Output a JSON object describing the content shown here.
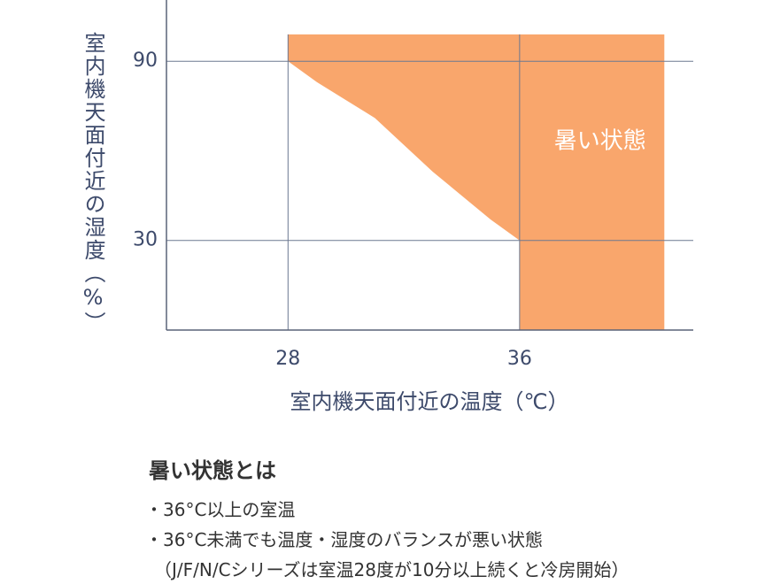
{
  "chart_data": {
    "type": "area",
    "x_label": "室内機天面付近の温度（℃）",
    "y_label": "室内機天面付近の湿度（%）",
    "x": [
      28,
      28,
      29,
      30,
      31,
      32,
      33,
      34,
      35,
      36,
      36,
      41,
      41
    ],
    "series": [
      {
        "name": "暑い状態",
        "color": "#f9a66c",
        "values": [
          99,
          90,
          83,
          77,
          71,
          62,
          53,
          45,
          37,
          30,
          0,
          0,
          99
        ]
      }
    ],
    "xlim": [
      23.8,
      42
    ],
    "ylim": [
      0,
      110.5
    ],
    "xticks": [
      28,
      36
    ],
    "yticks": [
      30,
      90
    ],
    "grid": true
  },
  "notes": {
    "title": "暑い状態とは",
    "items": [
      "・36°C以上の室温",
      "・36°C未満でも温度・湿度のバランスが悪い状態"
    ],
    "footnote": "（J/F/N/Cシリーズは室温28度が10分以上続くと冷房開始）"
  }
}
